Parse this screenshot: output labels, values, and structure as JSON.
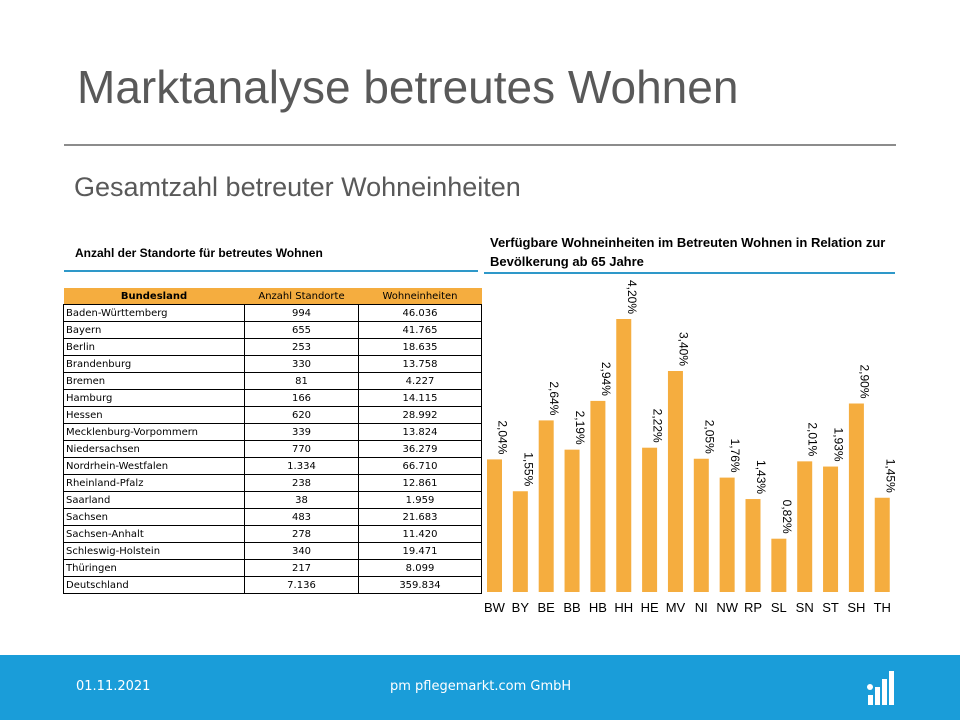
{
  "title": "Marktanalyse betreutes Wohnen",
  "subtitle": "Gesamtzahl betreuter Wohneinheiten",
  "table": {
    "heading": "Anzahl der Standorte für betreutes Wohnen",
    "columns": [
      "Bundesland",
      "Anzahl Standorte",
      "Wohneinheiten"
    ],
    "rows": [
      [
        "Baden-Württemberg",
        "994",
        "46.036"
      ],
      [
        "Bayern",
        "655",
        "41.765"
      ],
      [
        "Berlin",
        "253",
        "18.635"
      ],
      [
        "Brandenburg",
        "330",
        "13.758"
      ],
      [
        "Bremen",
        "81",
        "4.227"
      ],
      [
        " Hamburg",
        "166",
        "14.115"
      ],
      [
        "Hessen",
        "620",
        "28.992"
      ],
      [
        "Mecklenburg-Vorpommern",
        "339",
        "13.824"
      ],
      [
        "Niedersachsen",
        "770",
        "36.279"
      ],
      [
        "Nordrhein-Westfalen",
        "1.334",
        "66.710"
      ],
      [
        "Rheinland-Pfalz",
        "238",
        "12.861"
      ],
      [
        "Saarland",
        "38",
        "1.959"
      ],
      [
        "Sachsen",
        "483",
        "21.683"
      ],
      [
        "Sachsen-Anhalt",
        "278",
        "11.420"
      ],
      [
        "Schleswig-Holstein",
        "340",
        "19.471"
      ],
      [
        "Thüringen",
        "217",
        "8.099"
      ],
      [
        "Deutschland",
        "7.136",
        "359.834"
      ]
    ]
  },
  "chart_data": {
    "type": "bar",
    "title": "Verfügbare Wohneinheiten im Betreuten Wohnen in Relation zur Bevölkerung ab 65 Jahre",
    "categories": [
      "BW",
      "BY",
      "BE",
      "BB",
      "HB",
      "HH",
      "HE",
      "MV",
      "NI",
      "NW",
      "RP",
      "SL",
      "SN",
      "ST",
      "SH",
      "TH"
    ],
    "values": [
      2.04,
      1.55,
      2.64,
      2.19,
      2.94,
      4.2,
      2.22,
      3.4,
      2.05,
      1.76,
      1.43,
      0.82,
      2.01,
      1.93,
      2.9,
      1.45
    ],
    "value_labels": [
      "2,04%",
      "1,55%",
      "2,64%",
      "2,19%",
      "2,94%",
      "4,20%",
      "2,22%",
      "3,40%",
      "2,05%",
      "1,76%",
      "1,43%",
      "0,82%",
      "2,01%",
      "1,93%",
      "2,90%",
      "1,45%"
    ],
    "ylim": [
      0,
      4.4
    ],
    "bar_color": "#f5ad3f",
    "grid": false,
    "legend": "none"
  },
  "footer": {
    "date": "01.11.2021",
    "company": "pm pflegemarkt.com GmbH",
    "logo_icon": "bar-chart-logo-icon",
    "background": "#1a9dd9"
  }
}
